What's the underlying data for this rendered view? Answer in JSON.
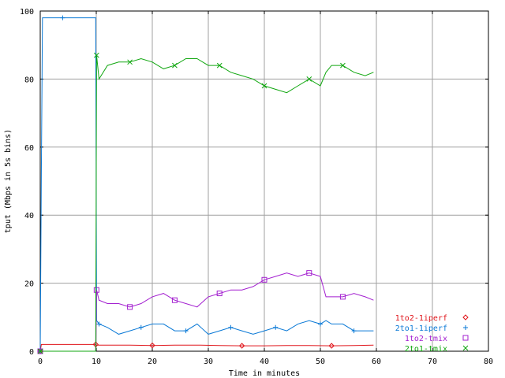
{
  "chart_data": {
    "type": "line",
    "title": "",
    "xlabel": "Time in minutes",
    "ylabel": "tput (Mbps in 5s bins)",
    "xlim": [
      0,
      80
    ],
    "ylim": [
      0,
      100
    ],
    "xticks": [
      "0",
      "10",
      "20",
      "30",
      "40",
      "50",
      "60",
      "70",
      "80"
    ],
    "yticks": [
      "0",
      "20",
      "40",
      "60",
      "80",
      "100"
    ],
    "grid": true,
    "legend_position": "bottom-right",
    "series": [
      {
        "name": "1to2-1iperf",
        "color": "#e0151b",
        "marker": "diamond",
        "x": [
          0,
          0.2,
          4,
          8,
          9.9,
          10.05,
          12.5,
          16,
          20,
          24,
          28,
          32,
          36,
          40,
          44,
          48,
          52,
          56,
          59.5
        ],
        "y": [
          0,
          2,
          2,
          2,
          2,
          1.8,
          1.8,
          1.8,
          1.7,
          1.8,
          1.8,
          1.7,
          1.6,
          1.6,
          1.7,
          1.7,
          1.6,
          1.7,
          1.8
        ]
      },
      {
        "name": "2to1-1iperf",
        "color": "#0a79d6",
        "marker": "plus",
        "x": [
          0,
          0.2,
          0.4,
          1,
          4,
          8,
          9.9,
          10.05,
          10.5,
          12,
          14,
          16,
          18,
          20,
          22,
          24,
          26,
          28,
          30,
          32,
          34,
          36,
          38,
          40,
          42,
          44,
          46,
          48,
          50,
          51,
          52,
          54,
          56,
          58,
          59.5
        ],
        "y": [
          0,
          52,
          98,
          98,
          98,
          98,
          98,
          9,
          8,
          7,
          5,
          6,
          7,
          8,
          8,
          6,
          6,
          8,
          5,
          6,
          7,
          6,
          5,
          6,
          7,
          6,
          8,
          9,
          8,
          9,
          8,
          8,
          6,
          6,
          6
        ]
      },
      {
        "name": "1to2-tmix",
        "color": "#a31fd0",
        "marker": "square",
        "x": [
          0,
          4,
          8,
          9.9,
          10.05,
          10.5,
          12,
          14,
          16,
          18,
          20,
          22,
          24,
          26,
          28,
          30,
          32,
          34,
          36,
          38,
          40,
          42,
          44,
          46,
          48,
          50,
          51,
          52,
          54,
          56,
          58,
          59.5
        ],
        "y": [
          0,
          0,
          0,
          0,
          18,
          15,
          14,
          14,
          13,
          14,
          16,
          17,
          15,
          14,
          13,
          16,
          17,
          18,
          18,
          19,
          21,
          22,
          23,
          22,
          23,
          22,
          16,
          16,
          16,
          17,
          16,
          15
        ]
      },
      {
        "name": "2to1-tmix",
        "color": "#11a710",
        "marker": "cross",
        "x": [
          0,
          4,
          8,
          9.9,
          10.05,
          10.5,
          12,
          14,
          16,
          18,
          20,
          22,
          24,
          26,
          28,
          30,
          32,
          34,
          36,
          38,
          40,
          42,
          44,
          46,
          48,
          50,
          51,
          52,
          54,
          56,
          58,
          59.5
        ],
        "y": [
          0,
          0,
          0,
          0,
          87,
          80,
          84,
          85,
          85,
          86,
          85,
          83,
          84,
          86,
          86,
          84,
          84,
          82,
          81,
          80,
          78,
          77,
          76,
          78,
          80,
          78,
          82,
          84,
          84,
          82,
          81,
          82
        ]
      }
    ]
  }
}
